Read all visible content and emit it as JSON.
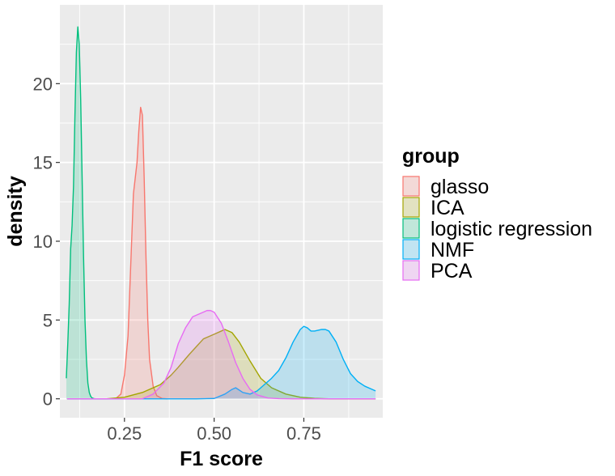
{
  "chart_data": {
    "type": "area",
    "xlabel": "F1 score",
    "ylabel": "density",
    "xlim": [
      0.07,
      0.97
    ],
    "ylim": [
      -1.2,
      25
    ],
    "x_ticks": [
      0.25,
      0.5,
      0.75
    ],
    "x_tick_labels": [
      "0.25",
      "0.50",
      "0.75"
    ],
    "y_ticks": [
      0,
      5,
      10,
      15,
      20
    ],
    "y_tick_labels": [
      "0",
      "5",
      "10",
      "15",
      "20"
    ],
    "grid": true,
    "legend": {
      "title": "group",
      "position": "right"
    },
    "series": [
      {
        "name": "glasso",
        "color": "#F8766D",
        "x": [
          0.225,
          0.24,
          0.25,
          0.26,
          0.27,
          0.275,
          0.28,
          0.285,
          0.29,
          0.295,
          0.3,
          0.305,
          0.31,
          0.315,
          0.32,
          0.33,
          0.34,
          0.355,
          0.37
        ],
        "y": [
          0,
          0.3,
          1.5,
          4,
          10,
          13,
          14,
          15,
          17,
          18.5,
          18,
          14,
          9,
          5,
          2.5,
          0.8,
          0.2,
          0.02,
          0
        ]
      },
      {
        "name": "ICA",
        "color": "#A3A500",
        "x": [
          0.09,
          0.2,
          0.25,
          0.3,
          0.35,
          0.38,
          0.4,
          0.43,
          0.45,
          0.47,
          0.5,
          0.52,
          0.53,
          0.55,
          0.57,
          0.6,
          0.63,
          0.66,
          0.7,
          0.74,
          0.78,
          0.82,
          0.95
        ],
        "y": [
          0,
          0,
          0.1,
          0.4,
          0.9,
          1.5,
          2,
          2.8,
          3.3,
          3.8,
          4.1,
          4.3,
          4.4,
          4.2,
          3.6,
          2.4,
          1.3,
          0.7,
          0.3,
          0.1,
          0.03,
          0,
          0
        ]
      },
      {
        "name": "logistic regression",
        "color": "#00BF7D",
        "x": [
          0.088,
          0.092,
          0.096,
          0.1,
          0.104,
          0.108,
          0.112,
          0.116,
          0.12,
          0.124,
          0.128,
          0.132,
          0.136,
          0.14,
          0.144,
          0.148,
          0.152,
          0.156,
          0.16,
          0.165,
          0.17,
          0.18
        ],
        "y": [
          1.3,
          3.5,
          6,
          9.5,
          11,
          13.5,
          18,
          22,
          23.6,
          22.5,
          19,
          14,
          9,
          5,
          2.5,
          1,
          0.4,
          0.15,
          0.05,
          0.01,
          0,
          0
        ]
      },
      {
        "name": "NMF",
        "color": "#00B0F6",
        "x": [
          0.09,
          0.45,
          0.5,
          0.53,
          0.55,
          0.56,
          0.58,
          0.6,
          0.62,
          0.64,
          0.66,
          0.68,
          0.7,
          0.72,
          0.74,
          0.75,
          0.76,
          0.77,
          0.78,
          0.79,
          0.8,
          0.81,
          0.82,
          0.84,
          0.86,
          0.88,
          0.9,
          0.92,
          0.95
        ],
        "y": [
          0,
          0,
          0.02,
          0.3,
          0.6,
          0.7,
          0.4,
          0.3,
          0.5,
          0.9,
          1.3,
          1.8,
          2.6,
          3.6,
          4.4,
          4.6,
          4.5,
          4.3,
          4.3,
          4.35,
          4.4,
          4.4,
          4.3,
          3.6,
          2.5,
          1.6,
          1.1,
          0.8,
          0.5
        ]
      },
      {
        "name": "PCA",
        "color": "#E76BF3",
        "x": [
          0.09,
          0.3,
          0.33,
          0.36,
          0.38,
          0.4,
          0.42,
          0.44,
          0.46,
          0.48,
          0.49,
          0.5,
          0.52,
          0.54,
          0.56,
          0.58,
          0.6,
          0.62,
          0.65,
          0.68,
          0.72,
          0.95
        ],
        "y": [
          0,
          0,
          0.3,
          1,
          2,
          3.5,
          4.5,
          5.2,
          5.4,
          5.6,
          5.6,
          5.5,
          4.8,
          3.6,
          2.3,
          1.3,
          0.6,
          0.25,
          0.05,
          0.01,
          0,
          0
        ]
      }
    ]
  }
}
